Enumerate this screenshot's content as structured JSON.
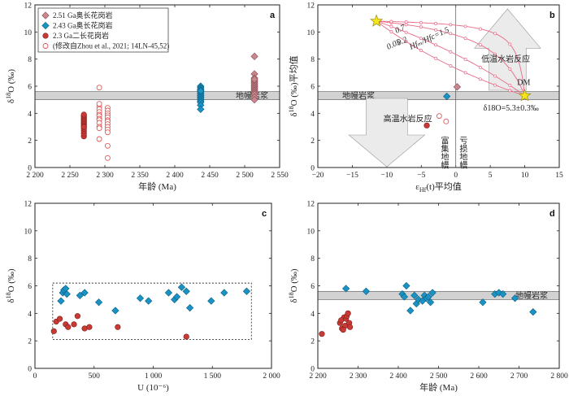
{
  "chart_data": [
    {
      "id": "a",
      "type": "scatter",
      "panel_label": "a",
      "xlabel": "年龄 (Ma)",
      "ylabel": "δ18O (‰)",
      "ylabel_parts": {
        "main": "δ",
        "sup": "18",
        "rest": "O (‰)"
      },
      "xlim": [
        2200,
        2550
      ],
      "ylim": [
        0,
        12
      ],
      "xticks": [
        2200,
        2250,
        2300,
        2350,
        2400,
        2450,
        2500,
        2550
      ],
      "xtick_labels": [
        "2 200",
        "2 250",
        "2 300",
        "2 350",
        "2 400",
        "2 450",
        "2 500",
        "2 550"
      ],
      "yticks": [
        0,
        2,
        4,
        6,
        8,
        10,
        12
      ],
      "ytick_labels": [
        "0",
        "2",
        "4",
        "6",
        "8",
        "10",
        "12"
      ],
      "band": {
        "y0": 5.0,
        "y1": 5.6,
        "label": "地幔岩浆"
      },
      "legend": {
        "position": "top-left",
        "entries": [
          {
            "label": "2.51 Ga奥长花岗岩",
            "marker": "diamond-pink"
          },
          {
            "label": "2.43 Ga奥长花岗岩",
            "marker": "diamond-blue"
          },
          {
            "label": "2.3 Ga二长花岗岩",
            "marker": "circle-red"
          },
          {
            "label": "(修改自Zhou et al., 2021; 14LN-45,52)",
            "marker": "circle-open"
          }
        ]
      },
      "series": [
        {
          "marker": "circle-red",
          "x": [
            2270,
            2270,
            2270,
            2270,
            2270,
            2270,
            2270,
            2270,
            2270,
            2270,
            2270,
            2270,
            2270,
            2270,
            2270
          ],
          "y": [
            2.3,
            2.5,
            2.7,
            2.85,
            3.0,
            3.1,
            3.2,
            3.3,
            3.4,
            3.5,
            3.6,
            3.7,
            3.8,
            3.9,
            3.0
          ]
        },
        {
          "marker": "circle-open",
          "x": [
            2292,
            2292,
            2292,
            2292,
            2292,
            2292,
            2292,
            2292,
            2292,
            2292,
            2292,
            2292,
            2292,
            2304,
            2304,
            2304,
            2304,
            2304,
            2304,
            2304,
            2304,
            2304,
            2304,
            2304,
            2304,
            2304
          ],
          "y": [
            5.9,
            4.5,
            4.3,
            4.1,
            3.9,
            3.8,
            3.6,
            3.5,
            3.3,
            3.0,
            2.9,
            2.1,
            4.7,
            4.4,
            4.2,
            4.0,
            3.85,
            3.7,
            3.5,
            3.4,
            3.2,
            3.0,
            2.8,
            2.6,
            1.6,
            0.7
          ]
        },
        {
          "marker": "diamond-blue",
          "x": [
            2437,
            2437,
            2437,
            2437,
            2437,
            2437,
            2437,
            2437,
            2437,
            2437,
            2437,
            2437,
            2437,
            2437,
            2437,
            2437
          ],
          "y": [
            6.0,
            5.9,
            5.8,
            5.7,
            5.6,
            5.5,
            5.4,
            5.3,
            5.2,
            5.1,
            5.0,
            4.9,
            4.8,
            4.6,
            4.3,
            5.65
          ]
        },
        {
          "marker": "diamond-pink",
          "x": [
            2514,
            2514,
            2514,
            2514,
            2514,
            2514,
            2514,
            2514,
            2514,
            2514,
            2514,
            2514,
            2514,
            2514,
            2514,
            2514,
            2514
          ],
          "y": [
            8.2,
            6.9,
            6.6,
            6.4,
            6.3,
            6.2,
            6.1,
            6.0,
            5.9,
            5.8,
            5.7,
            5.6,
            5.5,
            5.4,
            5.2,
            5.0,
            6.5
          ]
        }
      ]
    },
    {
      "id": "b",
      "type": "scatter",
      "panel_label": "b",
      "xlabel": "εHf(t)平均值",
      "xlabel_parts": {
        "main": "ε",
        "sub": "Hf",
        "rest": "(t)平均值"
      },
      "ylabel": "δ18O (‰)平均值",
      "ylabel_parts": {
        "main": "δ",
        "sup": "18",
        "rest": "O (‰)平均值"
      },
      "xlim": [
        -20,
        15
      ],
      "ylim": [
        0,
        12
      ],
      "xticks": [
        -20,
        -15,
        -10,
        -5,
        0,
        5,
        10,
        15
      ],
      "xtick_labels": [
        "−20",
        "−15",
        "−10",
        "−5",
        "0",
        "5",
        "10",
        "15"
      ],
      "yticks": [
        0,
        2,
        4,
        6,
        8,
        10,
        12
      ],
      "ytick_labels": [
        "0",
        "2",
        "4",
        "6",
        "8",
        "10",
        "12"
      ],
      "band": {
        "y0": 5.0,
        "y1": 5.6,
        "label": "地幔岩浆"
      },
      "annotations": [
        {
          "text": "Hfₘ/Hfc=1.5",
          "x": -6.5,
          "y": 8.7
        },
        {
          "text": "0.7",
          "x": -8.6,
          "y": 9.9
        },
        {
          "text": "0.2",
          "x": -8.3,
          "y": 9.0
        },
        {
          "text": "0.05",
          "x": -9.8,
          "y": 8.7
        },
        {
          "text": "低温水岩反应",
          "x": 3.7,
          "y": 7.8
        },
        {
          "text": "高温水岩反应",
          "x": -10.5,
          "y": 3.4
        },
        {
          "text": "DM",
          "x": 8.9,
          "y": 6.1
        },
        {
          "text": "δ18O=5.3±0.3‰",
          "x": 4.0,
          "y": 4.2
        },
        {
          "text": "富集地幔",
          "x": -1.8,
          "y": 2.3
        },
        {
          "text": "亏损地幔",
          "x": 0.9,
          "y": 2.3
        }
      ],
      "endmembers": [
        {
          "name": "crust",
          "x": -11.5,
          "y": 10.8,
          "marker": "star"
        },
        {
          "name": "DM",
          "x": 10.0,
          "y": 5.3,
          "marker": "star"
        }
      ],
      "series": [
        {
          "name": "2.51 Ga",
          "marker": "diamond-pink",
          "x": [
            0.2
          ],
          "y": [
            5.95
          ]
        },
        {
          "name": "2.43 Ga",
          "marker": "diamond-blue",
          "x": [
            -1.3
          ],
          "y": [
            5.25
          ]
        },
        {
          "name": "2.3 Ga",
          "marker": "circle-red",
          "x": [
            -4.2
          ],
          "y": [
            3.1
          ]
        },
        {
          "name": "Zhou",
          "marker": "circle-open",
          "x": [
            -2.4,
            -1.4
          ],
          "y": [
            3.8,
            3.4
          ]
        }
      ],
      "mixing_curves": [
        {
          "label": "1.5",
          "r": 1.5
        },
        {
          "label": "0.7",
          "r": 0.7
        },
        {
          "label": "0.2",
          "r": 0.2
        },
        {
          "label": "0.05",
          "r": 0.05
        }
      ]
    },
    {
      "id": "c",
      "type": "scatter",
      "panel_label": "c",
      "xlabel": "U (10⁻⁶)",
      "ylabel": "δ18O (‰)",
      "ylabel_parts": {
        "main": "δ",
        "sup": "18",
        "rest": "O (‰)"
      },
      "xlim": [
        0,
        2000
      ],
      "ylim": [
        0,
        12
      ],
      "xticks": [
        0,
        500,
        1000,
        1500,
        2000
      ],
      "xtick_labels": [
        "0",
        "500",
        "1 000",
        "1 500",
        "2 000"
      ],
      "yticks": [
        0,
        2,
        4,
        6,
        8,
        10,
        12
      ],
      "ytick_labels": [
        "0",
        "2",
        "4",
        "6",
        "8",
        "10",
        "12"
      ],
      "box": {
        "x0": 150,
        "x1": 1830,
        "y0": 2.1,
        "y1": 6.2
      },
      "series": [
        {
          "marker": "diamond-blue",
          "x": [
            220,
            235,
            245,
            260,
            270,
            380,
            420,
            540,
            680,
            890,
            960,
            1130,
            1180,
            1200,
            1240,
            1280,
            1310,
            1490,
            1600,
            1790
          ],
          "y": [
            4.9,
            5.5,
            5.7,
            5.8,
            5.4,
            5.3,
            5.5,
            4.8,
            4.2,
            5.1,
            4.9,
            5.5,
            5.0,
            5.2,
            5.9,
            5.6,
            4.4,
            4.9,
            5.5,
            5.6
          ]
        },
        {
          "marker": "circle-red",
          "x": [
            160,
            180,
            210,
            260,
            280,
            330,
            360,
            420,
            460,
            700,
            1280
          ],
          "y": [
            2.7,
            3.4,
            3.6,
            3.2,
            3.0,
            3.2,
            3.8,
            2.9,
            3.0,
            3.0,
            2.3
          ]
        }
      ]
    },
    {
      "id": "d",
      "type": "scatter",
      "panel_label": "d",
      "xlabel": "年龄 (Ma)",
      "ylabel": "δ18O (‰)",
      "ylabel_parts": {
        "main": "δ",
        "sup": "18",
        "rest": "O (‰)"
      },
      "xlim": [
        2200,
        2800
      ],
      "ylim": [
        0,
        12
      ],
      "xticks": [
        2200,
        2300,
        2400,
        2500,
        2600,
        2700,
        2800
      ],
      "xtick_labels": [
        "2 200",
        "2 300",
        "2 400",
        "2 500",
        "2 600",
        "2 700",
        "2 800"
      ],
      "yticks": [
        0,
        2,
        4,
        6,
        8,
        10,
        12
      ],
      "ytick_labels": [
        "0",
        "2",
        "4",
        "6",
        "8",
        "10",
        "12"
      ],
      "band": {
        "y0": 5.0,
        "y1": 5.6,
        "label": "地幔岩浆"
      },
      "series": [
        {
          "marker": "diamond-blue",
          "x": [
            2270,
            2320,
            2410,
            2415,
            2420,
            2430,
            2440,
            2445,
            2450,
            2460,
            2465,
            2470,
            2475,
            2480,
            2485,
            2610,
            2640,
            2650,
            2660,
            2690,
            2735
          ],
          "y": [
            5.8,
            5.6,
            5.4,
            5.2,
            6.0,
            4.2,
            5.3,
            4.7,
            5.0,
            4.9,
            5.3,
            5.1,
            5.2,
            4.8,
            5.5,
            4.8,
            5.4,
            5.5,
            5.4,
            5.1,
            4.1
          ]
        },
        {
          "marker": "circle-red",
          "x": [
            2210,
            2255,
            2260,
            2265,
            2268,
            2270,
            2272,
            2275,
            2278,
            2280,
            2263,
            2258
          ],
          "y": [
            2.5,
            3.3,
            2.9,
            3.7,
            3.1,
            3.6,
            3.8,
            4.0,
            3.3,
            3.0,
            2.8,
            3.5
          ]
        }
      ]
    }
  ]
}
